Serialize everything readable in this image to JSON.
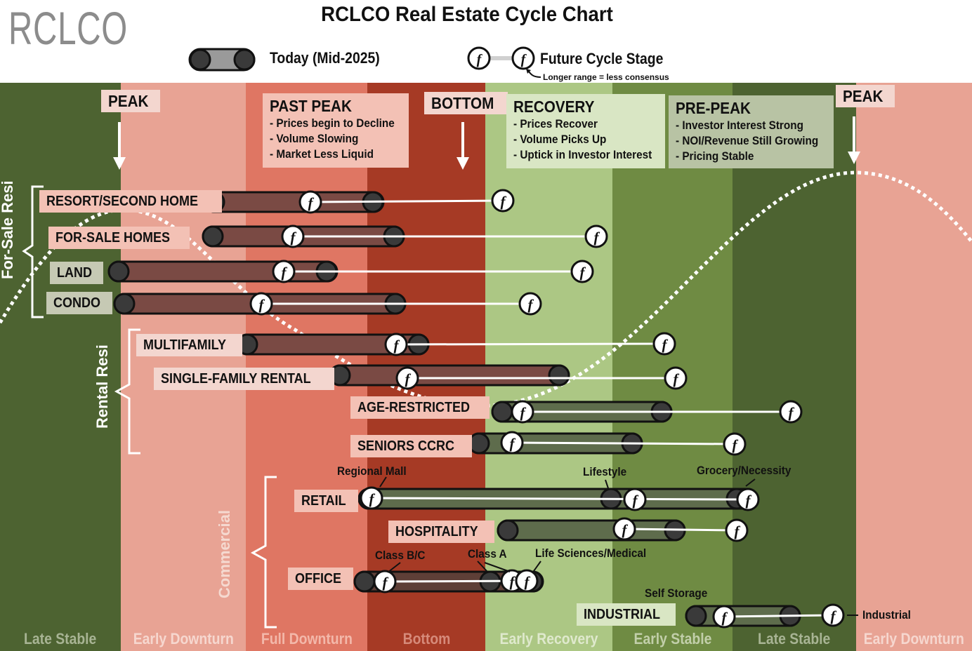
{
  "header": {
    "logo": "RCLCO",
    "title": "RCLCO Real Estate Cycle Chart",
    "legend_today": "Today (Mid-2025)",
    "legend_future": "Future Cycle Stage",
    "legend_note": "Longer range = less consensus",
    "marker_glyph": "f"
  },
  "colors": {
    "late_stable": "#4d6331",
    "early_downturn": "#e8a394",
    "full_downturn": "#df7663",
    "bottom": "#a63a25",
    "early_recovery": "#acc784",
    "early_stable": "#6f8b43",
    "peak_band": "#e8a394",
    "pill_fill": "#7a4a44",
    "pill_end": "#3a3a3a"
  },
  "phases": [
    "Late Stable",
    "Early Downturn",
    "Full Downturn",
    "Bottom",
    "Early Recovery",
    "Early Stable",
    "Late Stable",
    "Early Downturn"
  ],
  "callouts": {
    "peak_left": "PEAK",
    "bottom": "BOTTOM",
    "peak_right": "PEAK",
    "past_peak": {
      "title": "PAST PEAK",
      "items": [
        "- Prices begin to Decline",
        "- Volume Slowing",
        "- Market Less Liquid"
      ]
    },
    "recovery": {
      "title": "RECOVERY",
      "items": [
        "- Prices Recover",
        "- Volume Picks Up",
        "- Uptick in Investor Interest"
      ]
    },
    "pre_peak": {
      "title": "PRE-PEAK",
      "items": [
        "- Investor Interest Strong",
        "- NOI/Revenue Still Growing",
        "- Pricing Stable"
      ]
    }
  },
  "groups": {
    "for_sale": "For-Sale Resi",
    "rental": "Rental Resi",
    "commercial": "Commercial"
  },
  "sectors": [
    {
      "name": "RESORT/SECOND HOME",
      "today_start": "Early Downturn",
      "today_end": "Bottom",
      "future": [
        "Early Recovery"
      ]
    },
    {
      "name": "FOR-SALE HOMES",
      "today_start": "Early Downturn",
      "today_end": "Bottom",
      "future": [
        "Early Recovery"
      ]
    },
    {
      "name": "LAND",
      "today_start": "Early Downturn",
      "today_end": "Full Downturn",
      "future": [
        "Early Recovery"
      ]
    },
    {
      "name": "CONDO",
      "today_start": "Early Downturn",
      "today_end": "Bottom",
      "future": [
        "Early Recovery"
      ]
    },
    {
      "name": "MULTIFAMILY",
      "today_start": "Full Downturn",
      "today_end": "Bottom",
      "future": [
        "Early Stable"
      ]
    },
    {
      "name": "SINGLE-FAMILY RENTAL",
      "today_start": "Full Downturn",
      "today_end": "Early Recovery",
      "future": [
        "Early Stable"
      ]
    },
    {
      "name": "AGE-RESTRICTED",
      "today_start": "Early Recovery",
      "today_end": "Early Stable",
      "future": [
        "Late Stable"
      ]
    },
    {
      "name": "SENIORS CCRC",
      "today_start": "Bottom",
      "today_end": "Early Stable",
      "future": [
        "Early Stable"
      ]
    },
    {
      "name": "RETAIL",
      "today_start": "Bottom",
      "today_end": "Late Stable",
      "future": [
        "Late Stable"
      ]
    },
    {
      "name": "HOSPITALITY",
      "today_start": "Early Recovery",
      "today_end": "Early Stable",
      "future": [
        "Early Stable"
      ]
    },
    {
      "name": "OFFICE",
      "today_start": "Bottom",
      "today_end": "Early Recovery",
      "future": [
        "Early Recovery"
      ]
    },
    {
      "name": "INDUSTRIAL",
      "today_start": "Early Stable",
      "today_end": "Late Stable",
      "future": [
        "Late Stable"
      ]
    }
  ],
  "notes": {
    "regional_mall": "Regional Mall",
    "lifestyle": "Lifestyle",
    "grocery": "Grocery/Necessity",
    "class_bc": "Class B/C",
    "class_a": "Class A",
    "life_sciences": "Life Sciences/Medical",
    "self_storage": "Self Storage",
    "industrial": "Industrial"
  }
}
